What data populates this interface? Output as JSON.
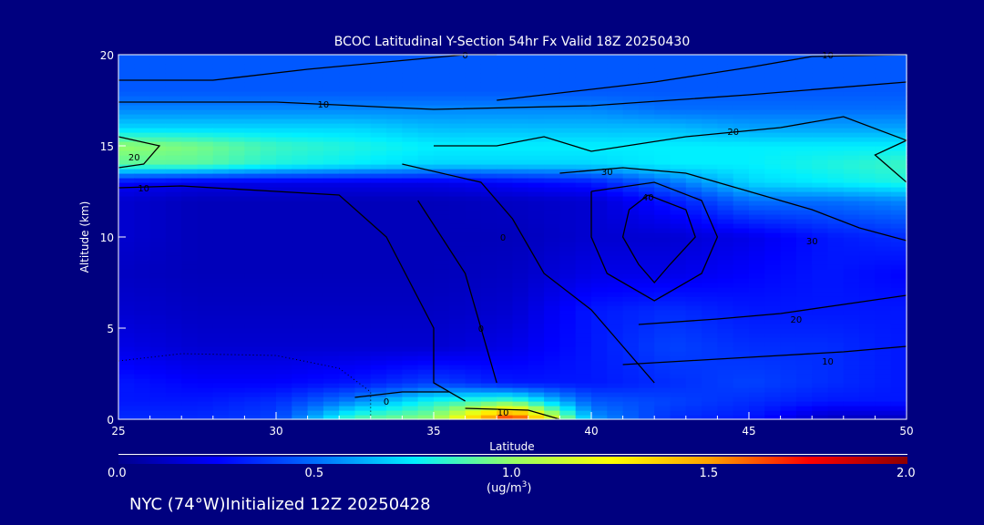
{
  "chart_data": {
    "type": "heatmap",
    "title": "BCOC Latitudinal Y-Section 54hr  Fx Valid 18Z 20250430",
    "xlabel": "Latitude",
    "ylabel": "Altitude (km)",
    "xlim": [
      25,
      50
    ],
    "ylim": [
      0,
      20
    ],
    "xticks": [
      "25",
      "30",
      "35",
      "40",
      "45",
      "50"
    ],
    "yticks": [
      "0",
      "5",
      "10",
      "15",
      "20"
    ],
    "colorbar": {
      "range": [
        0,
        2
      ],
      "ticks": [
        "0.0",
        "0.5",
        "1.0",
        "1.5",
        "2.0"
      ],
      "units": "(ug/m",
      "units_sup": "3",
      "units_close": ")"
    },
    "lats": [
      25,
      27.5,
      30,
      32.5,
      35,
      37.5,
      40,
      42.5,
      45,
      47.5,
      50
    ],
    "alts": [
      0,
      1,
      2,
      4,
      6,
      8,
      10,
      12,
      13,
      14,
      15,
      16,
      17,
      18,
      20
    ],
    "values": [
      [
        0.35,
        0.35,
        0.4,
        0.9,
        1.0,
        1.8,
        0.6,
        0.35,
        0.3,
        0.1,
        0.1
      ],
      [
        0.3,
        0.3,
        0.35,
        0.55,
        0.8,
        0.9,
        0.45,
        0.4,
        0.35,
        0.3,
        0.3
      ],
      [
        0.3,
        0.25,
        0.25,
        0.3,
        0.4,
        0.3,
        0.3,
        0.35,
        0.4,
        0.35,
        0.3
      ],
      [
        0.2,
        0.15,
        0.15,
        0.15,
        0.15,
        0.2,
        0.3,
        0.4,
        0.35,
        0.35,
        0.3
      ],
      [
        0.15,
        0.12,
        0.12,
        0.12,
        0.12,
        0.15,
        0.3,
        0.35,
        0.3,
        0.3,
        0.3
      ],
      [
        0.12,
        0.1,
        0.1,
        0.1,
        0.1,
        0.12,
        0.2,
        0.2,
        0.25,
        0.3,
        0.25
      ],
      [
        0.15,
        0.1,
        0.1,
        0.1,
        0.1,
        0.1,
        0.15,
        0.15,
        0.2,
        0.3,
        0.35
      ],
      [
        0.15,
        0.1,
        0.1,
        0.1,
        0.1,
        0.12,
        0.15,
        0.3,
        0.5,
        0.5,
        0.55
      ],
      [
        0.25,
        0.2,
        0.2,
        0.2,
        0.2,
        0.25,
        0.3,
        0.5,
        0.7,
        0.75,
        0.8
      ],
      [
        0.9,
        0.9,
        0.8,
        0.75,
        0.7,
        0.7,
        0.7,
        0.75,
        0.75,
        0.8,
        0.85
      ],
      [
        1.0,
        0.95,
        0.85,
        0.8,
        0.75,
        0.75,
        0.75,
        0.75,
        0.75,
        0.75,
        0.75
      ],
      [
        0.7,
        0.7,
        0.7,
        0.7,
        0.65,
        0.65,
        0.65,
        0.65,
        0.6,
        0.6,
        0.6
      ],
      [
        0.55,
        0.55,
        0.55,
        0.55,
        0.55,
        0.55,
        0.55,
        0.5,
        0.5,
        0.5,
        0.5
      ],
      [
        0.45,
        0.45,
        0.45,
        0.45,
        0.45,
        0.45,
        0.45,
        0.45,
        0.45,
        0.45,
        0.45
      ],
      [
        0.45,
        0.45,
        0.45,
        0.45,
        0.45,
        0.45,
        0.45,
        0.45,
        0.45,
        0.45,
        0.45
      ]
    ],
    "contours": [
      {
        "label": "0",
        "at": [
          36,
          20
        ],
        "points": [
          [
            25,
            18.6
          ],
          [
            28,
            18.6
          ],
          [
            31,
            19.2
          ],
          [
            36,
            20
          ],
          [
            37,
            20
          ]
        ]
      },
      {
        "label": "10",
        "at": [
          47.5,
          20
        ],
        "points": [
          [
            37,
            17.5
          ],
          [
            42,
            18.5
          ],
          [
            45,
            19.3
          ],
          [
            47,
            19.9
          ],
          [
            50,
            20
          ]
        ]
      },
      {
        "label": "10",
        "at": [
          31.5,
          17.3
        ],
        "points": [
          [
            25,
            17.4
          ],
          [
            30,
            17.4
          ],
          [
            35,
            17.0
          ],
          [
            40,
            17.2
          ],
          [
            45,
            17.8
          ],
          [
            50,
            18.5
          ]
        ]
      },
      {
        "label": "20",
        "at": [
          44.5,
          15.8
        ],
        "points": [
          [
            35,
            15
          ],
          [
            37,
            15
          ],
          [
            38.5,
            15.5
          ],
          [
            40,
            14.7
          ],
          [
            43,
            15.5
          ],
          [
            46,
            16
          ],
          [
            48,
            16.6
          ],
          [
            50,
            15.3
          ],
          [
            49,
            14.5
          ],
          [
            50,
            13
          ]
        ]
      },
      {
        "label": "20",
        "at": [
          25.5,
          14.4
        ],
        "points": [
          [
            25,
            15.5
          ],
          [
            26.3,
            15
          ],
          [
            25.8,
            14
          ],
          [
            25,
            13.8
          ]
        ]
      },
      {
        "label": "30",
        "at": [
          40.5,
          13.6
        ],
        "points": [
          [
            39,
            13.5
          ],
          [
            41,
            13.8
          ],
          [
            43,
            13.5
          ],
          [
            45,
            12.5
          ],
          [
            47,
            11.5
          ],
          [
            48.5,
            10.5
          ],
          [
            50,
            9.8
          ]
        ]
      },
      {
        "label": "30",
        "at": [
          47,
          9.8
        ],
        "points": [
          [
            40,
            12.5
          ],
          [
            42,
            13
          ],
          [
            43.5,
            12
          ],
          [
            44,
            10
          ],
          [
            43.5,
            8
          ],
          [
            42,
            6.5
          ],
          [
            40.5,
            8
          ],
          [
            40,
            10
          ],
          [
            40,
            12.5
          ]
        ]
      },
      {
        "label": "40",
        "at": [
          41.8,
          12.2
        ],
        "points": [
          [
            41.8,
            12.3
          ],
          [
            43,
            11.5
          ],
          [
            43.3,
            10
          ],
          [
            42.5,
            8.5
          ],
          [
            42,
            7.5
          ],
          [
            41.5,
            8.5
          ],
          [
            41,
            10
          ],
          [
            41.2,
            11.5
          ],
          [
            41.8,
            12.3
          ]
        ]
      },
      {
        "label": "10",
        "at": [
          25.8,
          12.7
        ],
        "points": [
          [
            25,
            12.7
          ],
          [
            27,
            12.8
          ],
          [
            30,
            12.5
          ],
          [
            32,
            12.3
          ],
          [
            33.5,
            10
          ],
          [
            35,
            5
          ],
          [
            35,
            2
          ],
          [
            36,
            1
          ]
        ]
      },
      {
        "label": "0",
        "at": [
          37.2,
          10
        ],
        "points": [
          [
            34,
            14
          ],
          [
            36.5,
            13
          ],
          [
            37.5,
            11
          ],
          [
            38.5,
            8
          ],
          [
            40,
            6
          ],
          [
            41,
            4
          ],
          [
            42,
            2
          ]
        ]
      },
      {
        "label": "0",
        "at": [
          36.5,
          5
        ],
        "points": [
          [
            34.5,
            12
          ],
          [
            36,
            8
          ],
          [
            36.5,
            5
          ],
          [
            37,
            2
          ]
        ]
      },
      {
        "label": "20",
        "at": [
          46.5,
          5.5
        ],
        "points": [
          [
            41.5,
            5.2
          ],
          [
            44,
            5.5
          ],
          [
            46,
            5.8
          ],
          [
            48,
            6.3
          ],
          [
            50,
            6.8
          ]
        ]
      },
      {
        "label": "10",
        "at": [
          47.5,
          3.2
        ],
        "points": [
          [
            41,
            3
          ],
          [
            44,
            3.3
          ],
          [
            46,
            3.5
          ],
          [
            48,
            3.7
          ],
          [
            50,
            4
          ]
        ]
      },
      {
        "label": "0",
        "at": [
          33.5,
          1
        ],
        "points": [
          [
            32.5,
            1.2
          ],
          [
            34,
            1.5
          ],
          [
            35.5,
            1.5
          ]
        ]
      },
      {
        "label": "10",
        "at": [
          37.2,
          0.4
        ],
        "points": [
          [
            36,
            0.6
          ],
          [
            38,
            0.5
          ],
          [
            39,
            0
          ]
        ]
      },
      {
        "label": "",
        "dotted": true,
        "at": null,
        "points": [
          [
            25,
            3.2
          ],
          [
            27,
            3.6
          ],
          [
            30,
            3.5
          ],
          [
            32,
            2.8
          ],
          [
            33,
            1.5
          ],
          [
            33,
            0
          ]
        ]
      }
    ]
  },
  "footer": "NYC (74°W)Initialized 12Z 20250428"
}
